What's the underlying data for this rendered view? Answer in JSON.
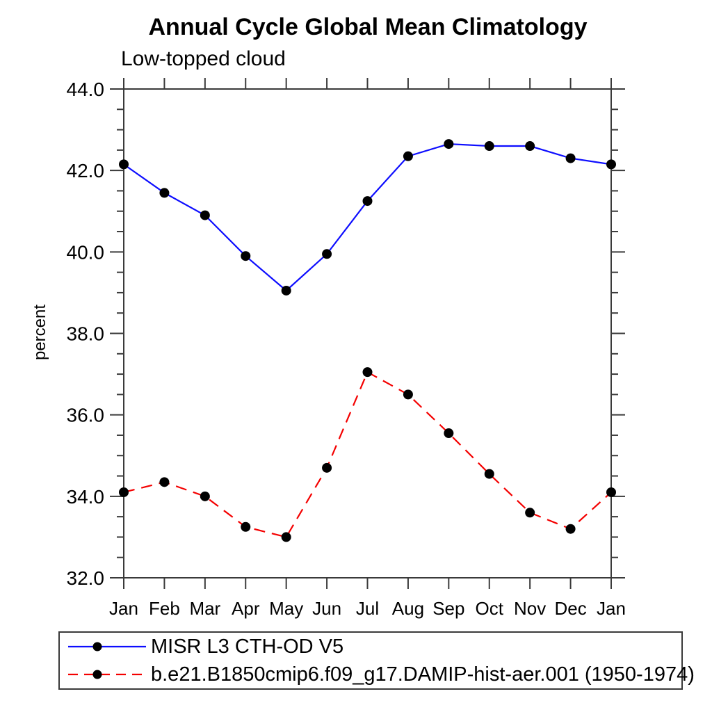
{
  "chart_data": {
    "type": "line",
    "title": "Annual Cycle Global Mean Climatology",
    "subtitle": "Low-topped cloud",
    "xlabel": "",
    "ylabel": "percent",
    "ylim": [
      32.0,
      44.0
    ],
    "y_major_tick_labels": [
      "32.0",
      "34.0",
      "36.0",
      "38.0",
      "40.0",
      "42.0",
      "44.0"
    ],
    "y_major_tick_values": [
      32,
      34,
      36,
      38,
      40,
      42,
      44
    ],
    "y_minor_tick_step": 0.5,
    "x_categories": [
      "Jan",
      "Feb",
      "Mar",
      "Apr",
      "May",
      "Jun",
      "Jul",
      "Aug",
      "Sep",
      "Oct",
      "Nov",
      "Dec",
      "Jan"
    ],
    "grid": false,
    "legend_position": "bottom-left-box",
    "axis_color": "#3a3a3a",
    "marker_radius": 7,
    "series": [
      {
        "name": "MISR L3 CTH-OD V5",
        "color": "#0d0dff",
        "line_style": "solid",
        "marker": "filled-circle",
        "marker_color": "#000000",
        "values": [
          42.15,
          41.45,
          40.9,
          39.9,
          39.05,
          39.95,
          41.25,
          42.35,
          42.65,
          42.6,
          42.6,
          42.3,
          42.15
        ]
      },
      {
        "name": "b.e21.B1850cmip6.f09_g17.DAMIP-hist-aer.001 (1950-1974)",
        "color": "#f40000",
        "line_style": "dashed",
        "marker": "filled-circle",
        "marker_color": "#000000",
        "values": [
          34.1,
          34.35,
          34.0,
          33.25,
          33.0,
          34.7,
          37.05,
          36.5,
          35.55,
          34.55,
          33.6,
          33.2,
          34.1
        ]
      }
    ]
  }
}
